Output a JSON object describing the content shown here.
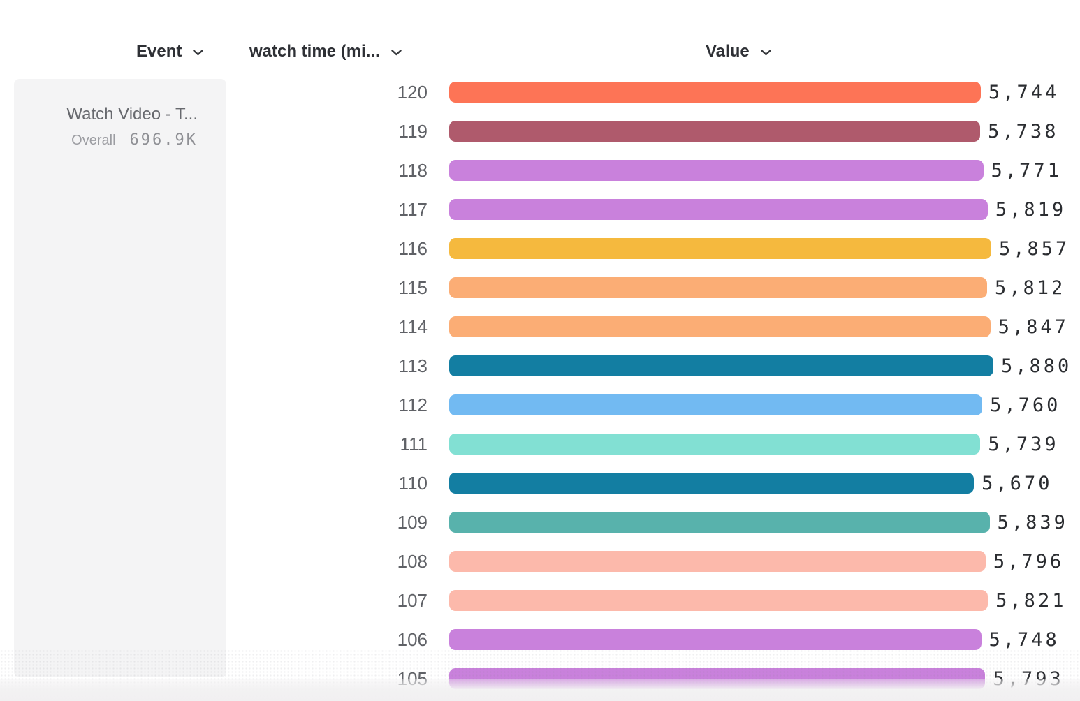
{
  "header": {
    "columns": [
      {
        "label": "Event"
      },
      {
        "label": "watch time (mi..."
      },
      {
        "label": "Value"
      }
    ]
  },
  "event_card": {
    "title": "Watch Video - T...",
    "overall_label": "Overall",
    "overall_value": "696.9K"
  },
  "chart_data": {
    "type": "bar",
    "orientation": "horizontal",
    "title": "",
    "xlabel": "Value",
    "ylabel": "watch time (mi...)",
    "xlim": [
      0,
      5880
    ],
    "grid": false,
    "categories": [
      "120",
      "119",
      "118",
      "117",
      "116",
      "115",
      "114",
      "113",
      "112",
      "111",
      "110",
      "109",
      "108",
      "107",
      "106",
      "105"
    ],
    "values": [
      5744,
      5738,
      5771,
      5819,
      5857,
      5812,
      5847,
      5880,
      5760,
      5739,
      5670,
      5839,
      5796,
      5821,
      5748,
      5793
    ],
    "value_labels": [
      "5,744",
      "5,738",
      "5,771",
      "5,819",
      "5,857",
      "5,812",
      "5,847",
      "5,880",
      "5,760",
      "5,739",
      "5,670",
      "5,839",
      "5,796",
      "5,821",
      "5,748",
      "5,793"
    ],
    "bar_colors": [
      "#FD7456",
      "#AF5A6C",
      "#C981DC",
      "#C981DC",
      "#F5B93E",
      "#FBAD75",
      "#FBAD75",
      "#137EA2",
      "#72BAF2",
      "#82E0D3",
      "#137EA2",
      "#58B2AC",
      "#FCB9AB",
      "#FCB9AB",
      "#C981DC",
      "#C981DC"
    ],
    "series": [
      {
        "name": "Watch Video - T... (Overall)",
        "values": [
          5744,
          5738,
          5771,
          5819,
          5857,
          5812,
          5847,
          5880,
          5760,
          5739,
          5670,
          5839,
          5796,
          5821,
          5748,
          5793
        ]
      }
    ]
  },
  "colors": {
    "header_text": "#2e3035",
    "row_label_text": "#5f6166",
    "value_text": "#2b2d31",
    "card_background": "#f4f4f5",
    "card_title_text": "#67696e",
    "card_secondary_text": "#9c9da2",
    "bottom_band": "#f1f0f1"
  }
}
